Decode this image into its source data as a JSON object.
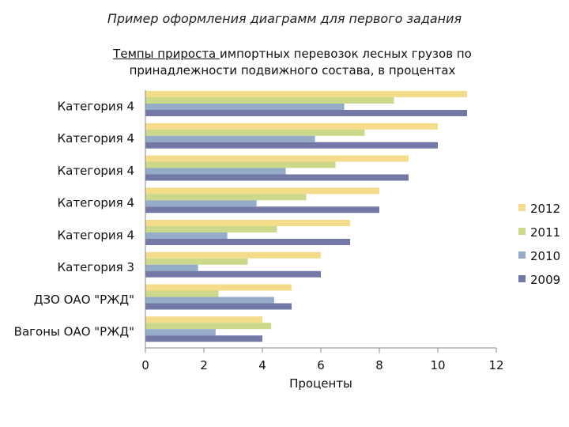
{
  "page": {
    "caption": "Пример оформления диаграмм для первого задания"
  },
  "chart_data": {
    "type": "bar",
    "orientation": "horizontal",
    "title_underlined": "Темпы прироста ",
    "title_rest_line1": "импортных перевозок лесных грузов по",
    "title_line2": "принадлежности подвижного состава, в процентах",
    "categories": [
      "Вагоны ОАО \"РЖД\"",
      "ДЗО ОАО \"РЖД\"",
      "Категория 3",
      "Категория 4",
      "Категория 4",
      "Категория 4",
      "Категория 4",
      "Категория 4"
    ],
    "series": [
      {
        "name": "2009",
        "color": "#7478a6",
        "values": [
          4,
          5,
          6,
          7,
          8,
          9,
          10,
          11
        ]
      },
      {
        "name": "2010",
        "color": "#94acc8",
        "values": [
          2.4,
          4.4,
          1.8,
          2.8,
          3.8,
          4.8,
          5.8,
          6.8
        ]
      },
      {
        "name": "2011",
        "color": "#ccd98a",
        "values": [
          4.3,
          2.5,
          3.5,
          4.5,
          5.5,
          6.5,
          7.5,
          8.5
        ]
      },
      {
        "name": "2012",
        "color": "#f4dc8a",
        "values": [
          4,
          5,
          6,
          7,
          8,
          9,
          10,
          11
        ]
      }
    ],
    "xlabel": "Проценты",
    "xlim": [
      0,
      12
    ],
    "xticks": [
      0,
      2,
      4,
      6,
      8,
      10,
      12
    ],
    "legend_position": "right"
  }
}
